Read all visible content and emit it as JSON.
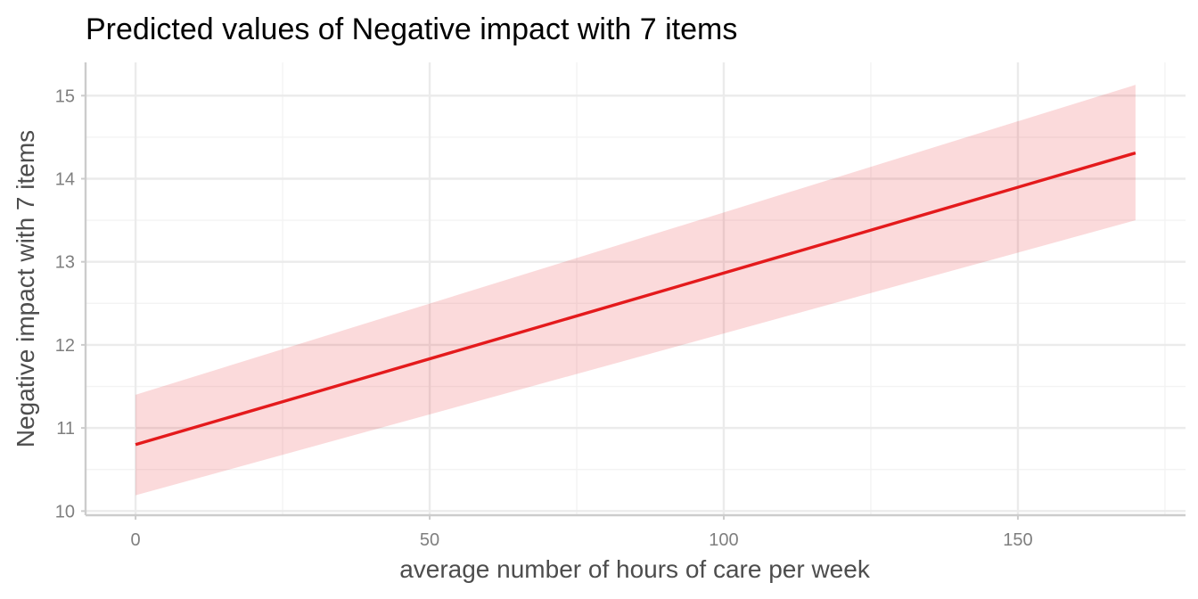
{
  "chart_data": {
    "type": "line",
    "title": "Predicted values of Negative impact with 7 items",
    "xlabel": "average number of hours of care per week",
    "ylabel": "Negative impact with 7 items",
    "xlim": [
      -8.5,
      178.5
    ],
    "ylim": [
      9.95,
      15.4
    ],
    "x_ticks": [
      0,
      50,
      100,
      150
    ],
    "y_ticks": [
      10,
      11,
      12,
      13,
      14,
      15
    ],
    "grid": true,
    "legend": "none",
    "series": [
      {
        "x": [
          0,
          170
        ],
        "y": [
          10.8,
          14.31
        ],
        "ci_lower": [
          10.19,
          13.5
        ],
        "ci_upper": [
          11.4,
          15.13
        ],
        "color": "#e41a1c"
      }
    ]
  }
}
